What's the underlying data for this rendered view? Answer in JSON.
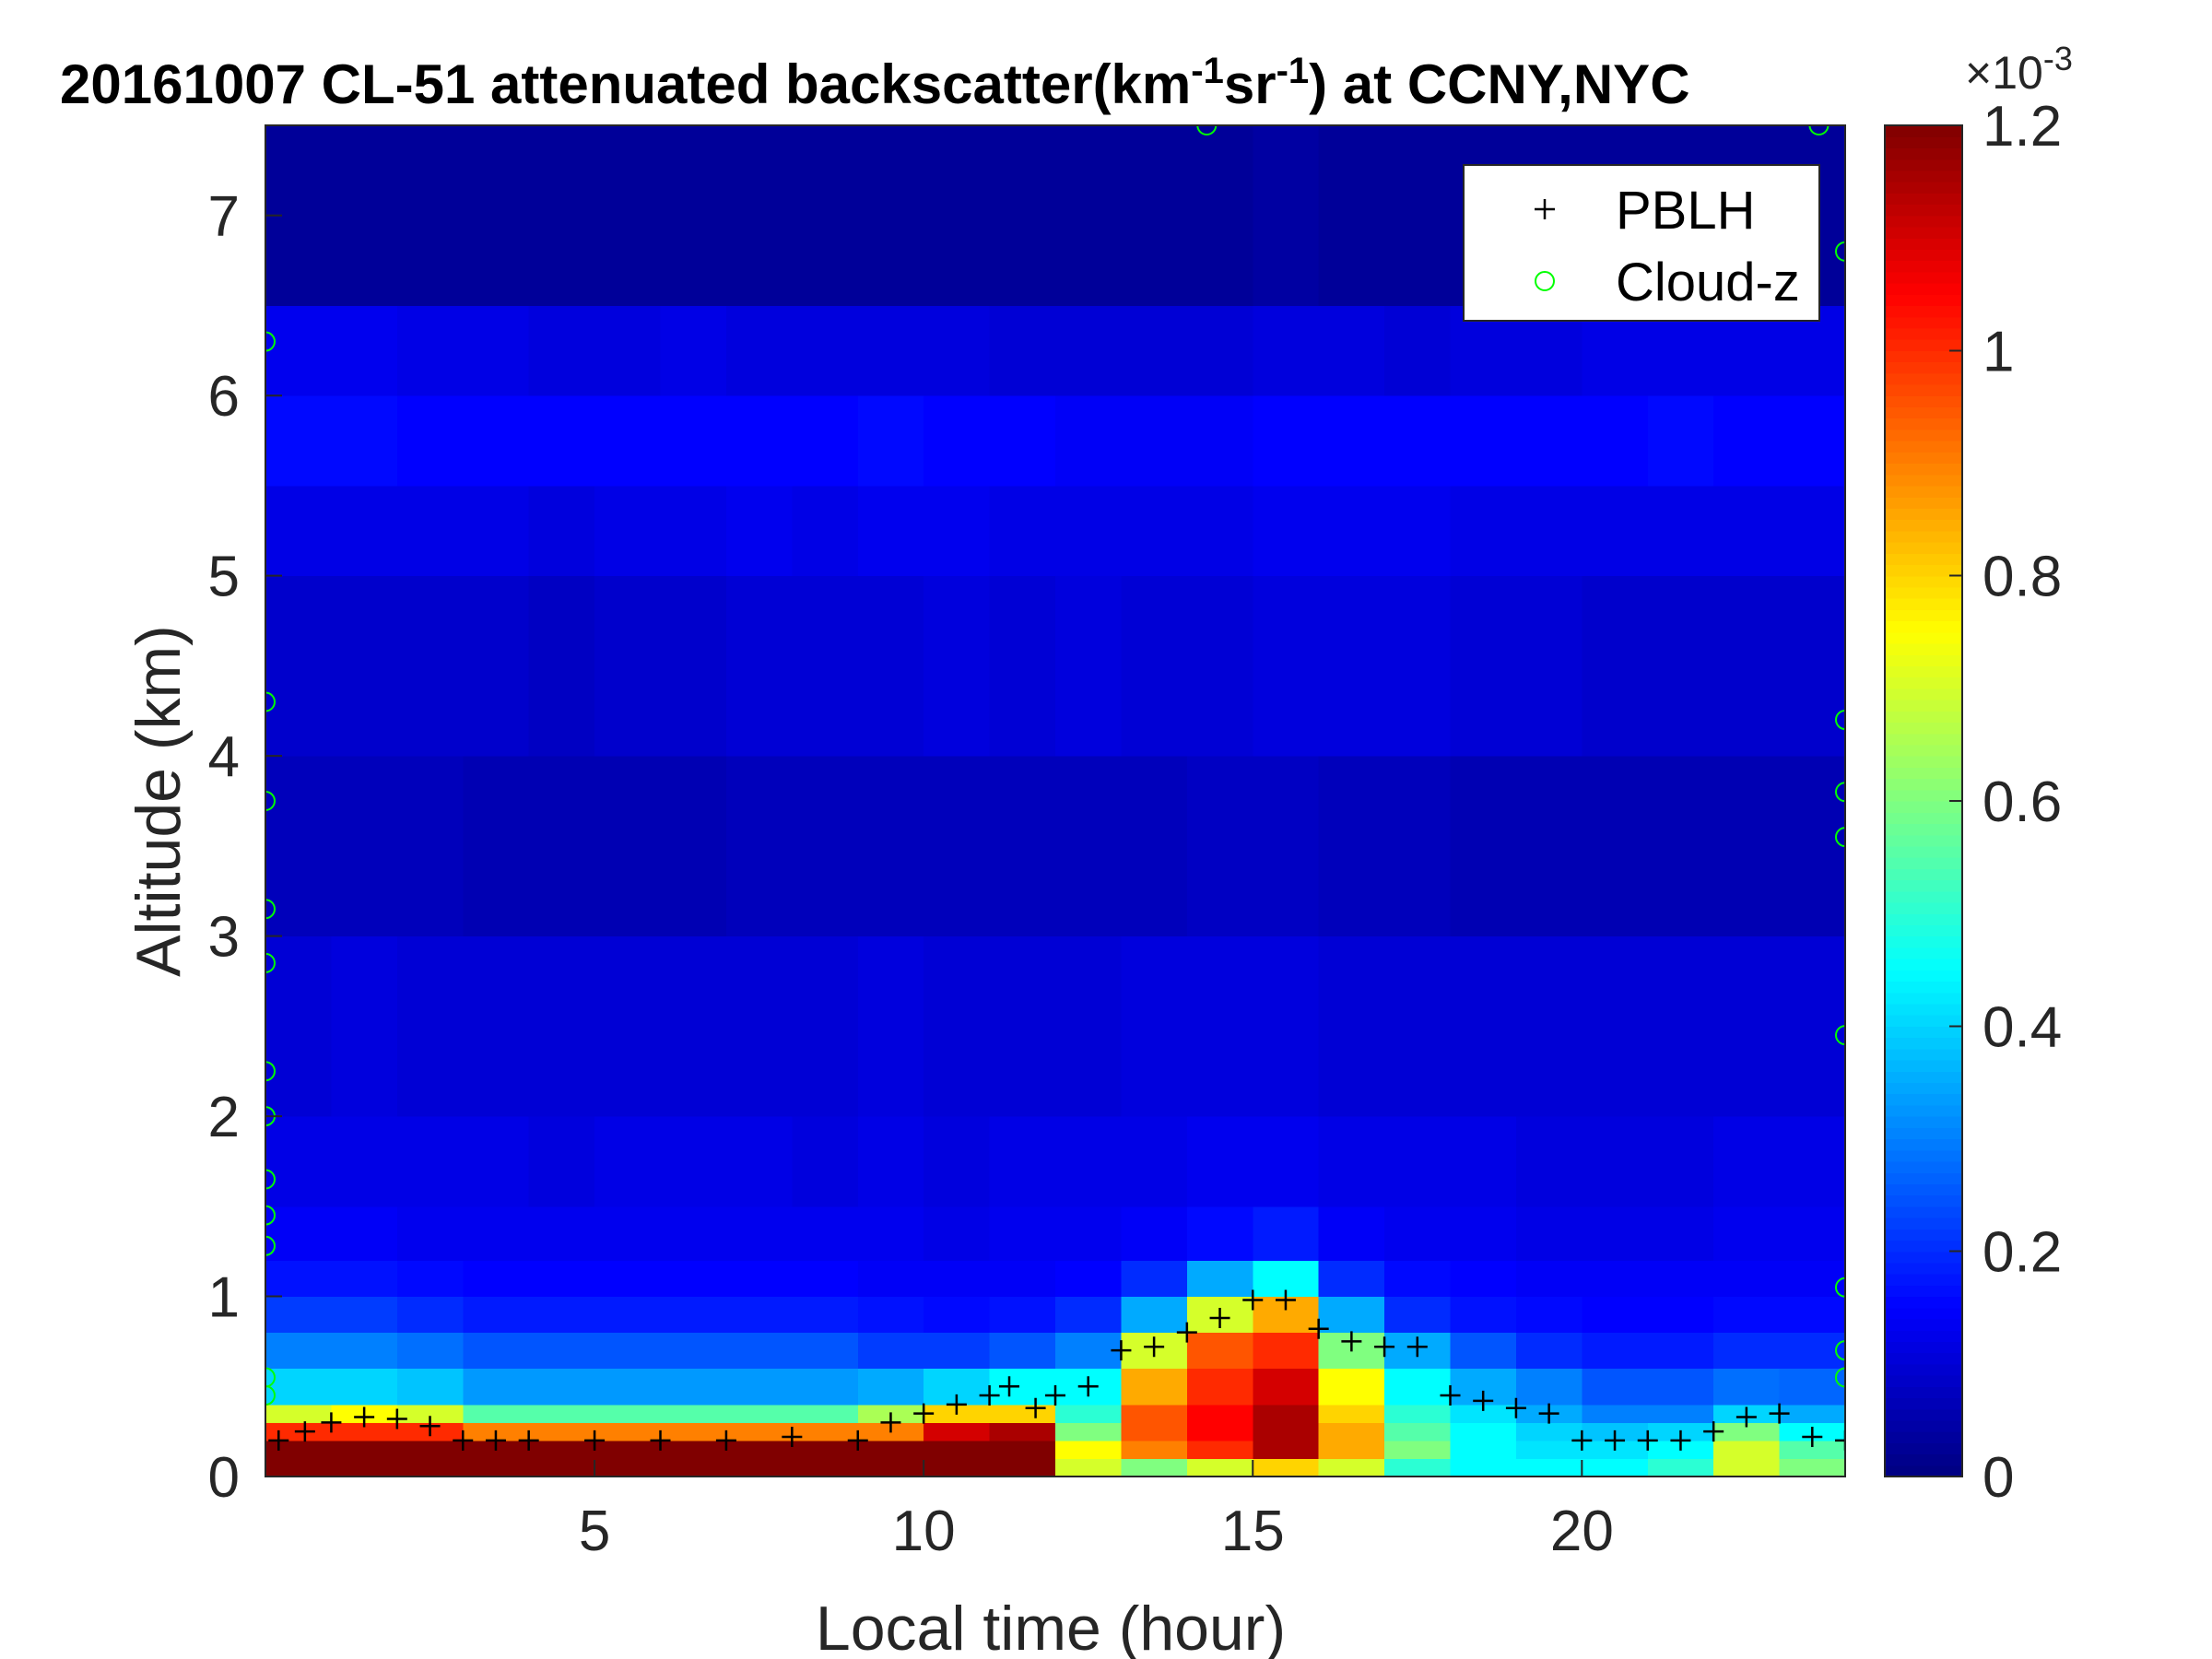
{
  "chart_data": {
    "type": "heatmap",
    "title": [
      "20161007  CL-51 attenuated backscatter(km",
      "-1",
      "sr",
      "-1",
      ") at CCNY,NYC"
    ],
    "xlabel": "Local time (hour)",
    "ylabel": "Altitude (km)",
    "xlim": [
      0,
      24
    ],
    "ylim": [
      0,
      7.5
    ],
    "xticks": [
      5,
      10,
      15,
      20
    ],
    "yticks": [
      0,
      1,
      2,
      3,
      4,
      5,
      6,
      7
    ],
    "x_edges": [
      0,
      1,
      2,
      3,
      4,
      5,
      6,
      7,
      8,
      9,
      10,
      11,
      12,
      13,
      14,
      15,
      16,
      17,
      18,
      19,
      20,
      21,
      22,
      23,
      24
    ],
    "y_edges": [
      0,
      0.1,
      0.2,
      0.3,
      0.4,
      0.6,
      0.8,
      1.0,
      1.2,
      1.5,
      2,
      3,
      4,
      5,
      5.5,
      6,
      6.5,
      7.5
    ],
    "values": [
      [
        1.2,
        1.2,
        1.2,
        1.2,
        1.2,
        1.2,
        1.2,
        1.2,
        1.2,
        1.2,
        1.2,
        1.2,
        0.7,
        0.6,
        0.7,
        0.8,
        0.7,
        0.5,
        0.45,
        0.45,
        0.45,
        0.5,
        0.7,
        0.6
      ],
      [
        1.2,
        1.2,
        1.2,
        1.2,
        1.2,
        1.2,
        1.2,
        1.2,
        1.2,
        1.2,
        1.2,
        1.2,
        0.75,
        0.9,
        1.0,
        1.15,
        0.85,
        0.6,
        0.45,
        0.42,
        0.42,
        0.45,
        0.7,
        0.55
      ],
      [
        1.0,
        1.0,
        1.0,
        0.9,
        0.9,
        0.9,
        0.9,
        0.9,
        0.9,
        0.9,
        1.1,
        1.15,
        0.6,
        0.95,
        1.05,
        1.15,
        0.85,
        0.55,
        0.45,
        0.4,
        0.38,
        0.4,
        0.6,
        0.45
      ],
      [
        0.7,
        0.75,
        0.7,
        0.55,
        0.55,
        0.55,
        0.55,
        0.55,
        0.55,
        0.65,
        0.8,
        0.8,
        0.5,
        0.95,
        1.05,
        1.15,
        0.8,
        0.5,
        0.42,
        0.35,
        0.3,
        0.3,
        0.4,
        0.35
      ],
      [
        0.4,
        0.4,
        0.38,
        0.33,
        0.33,
        0.33,
        0.33,
        0.33,
        0.33,
        0.35,
        0.4,
        0.45,
        0.45,
        0.85,
        1.0,
        1.1,
        0.75,
        0.45,
        0.35,
        0.3,
        0.25,
        0.25,
        0.28,
        0.27
      ],
      [
        0.3,
        0.3,
        0.28,
        0.25,
        0.25,
        0.25,
        0.25,
        0.25,
        0.25,
        0.22,
        0.22,
        0.25,
        0.3,
        0.7,
        0.95,
        1.0,
        0.6,
        0.35,
        0.25,
        0.2,
        0.18,
        0.18,
        0.2,
        0.2
      ],
      [
        0.22,
        0.22,
        0.2,
        0.18,
        0.18,
        0.18,
        0.18,
        0.18,
        0.18,
        0.17,
        0.16,
        0.17,
        0.2,
        0.35,
        0.7,
        0.85,
        0.35,
        0.2,
        0.17,
        0.16,
        0.15,
        0.15,
        0.16,
        0.16
      ],
      [
        0.17,
        0.17,
        0.16,
        0.15,
        0.15,
        0.15,
        0.15,
        0.15,
        0.15,
        0.14,
        0.14,
        0.14,
        0.15,
        0.2,
        0.35,
        0.45,
        0.2,
        0.16,
        0.15,
        0.14,
        0.14,
        0.14,
        0.14,
        0.14
      ],
      [
        0.14,
        0.14,
        0.13,
        0.13,
        0.13,
        0.13,
        0.13,
        0.13,
        0.13,
        0.13,
        0.12,
        0.13,
        0.13,
        0.14,
        0.16,
        0.18,
        0.14,
        0.13,
        0.13,
        0.12,
        0.12,
        0.12,
        0.13,
        0.13
      ],
      [
        0.12,
        0.12,
        0.12,
        0.12,
        0.11,
        0.12,
        0.12,
        0.12,
        0.11,
        0.12,
        0.11,
        0.12,
        0.12,
        0.12,
        0.13,
        0.13,
        0.12,
        0.12,
        0.12,
        0.11,
        0.11,
        0.11,
        0.12,
        0.12
      ],
      [
        0.1,
        0.11,
        0.1,
        0.1,
        0.1,
        0.1,
        0.1,
        0.1,
        0.1,
        0.11,
        0.1,
        0.1,
        0.1,
        0.11,
        0.11,
        0.11,
        0.1,
        0.1,
        0.1,
        0.1,
        0.1,
        0.1,
        0.1,
        0.1
      ],
      [
        0.07,
        0.07,
        0.07,
        0.06,
        0.06,
        0.06,
        0.06,
        0.07,
        0.07,
        0.07,
        0.07,
        0.07,
        0.07,
        0.07,
        0.08,
        0.08,
        0.07,
        0.07,
        0.06,
        0.06,
        0.06,
        0.06,
        0.06,
        0.06
      ],
      [
        0.09,
        0.09,
        0.09,
        0.09,
        0.08,
        0.09,
        0.09,
        0.1,
        0.1,
        0.1,
        0.11,
        0.1,
        0.11,
        0.1,
        0.1,
        0.11,
        0.11,
        0.11,
        0.1,
        0.1,
        0.09,
        0.09,
        0.09,
        0.09
      ],
      [
        0.12,
        0.12,
        0.12,
        0.12,
        0.11,
        0.12,
        0.12,
        0.13,
        0.12,
        0.13,
        0.13,
        0.12,
        0.12,
        0.12,
        0.12,
        0.13,
        0.13,
        0.13,
        0.12,
        0.12,
        0.12,
        0.12,
        0.12,
        0.12
      ],
      [
        0.16,
        0.16,
        0.15,
        0.15,
        0.15,
        0.15,
        0.15,
        0.15,
        0.15,
        0.16,
        0.15,
        0.15,
        0.14,
        0.14,
        0.14,
        0.15,
        0.15,
        0.15,
        0.15,
        0.15,
        0.15,
        0.16,
        0.15,
        0.15
      ],
      [
        0.13,
        0.13,
        0.12,
        0.12,
        0.11,
        0.11,
        0.12,
        0.11,
        0.11,
        0.11,
        0.11,
        0.1,
        0.1,
        0.1,
        0.1,
        0.11,
        0.11,
        0.1,
        0.11,
        0.11,
        0.12,
        0.12,
        0.12,
        0.12
      ],
      [
        0.03,
        0.03,
        0.03,
        0.03,
        0.03,
        0.03,
        0.03,
        0.03,
        0.03,
        0.03,
        0.03,
        0.03,
        0.03,
        0.03,
        0.03,
        0.04,
        0.03,
        0.03,
        0.03,
        0.03,
        0.03,
        0.03,
        0.03,
        0.03
      ]
    ],
    "colormap": "jet",
    "clim": [
      0,
      1.2
    ],
    "cticks": [
      0,
      0.2,
      0.4,
      0.6,
      0.8,
      1,
      1.2
    ],
    "colorbar_exponent": [
      "×10",
      "-3"
    ],
    "legend": "northeast",
    "overlays": [
      {
        "name": "PBLH",
        "marker": "+",
        "color": "#000000",
        "x": [
          0.2,
          0.6,
          1,
          1.5,
          2,
          2.5,
          3,
          3.5,
          4,
          5,
          6,
          7,
          8,
          9,
          9.5,
          10,
          10.5,
          11,
          11.3,
          11.7,
          12,
          12.5,
          13,
          13.5,
          14,
          14.5,
          15,
          15.5,
          16,
          16.5,
          17,
          17.5,
          18,
          18.5,
          19,
          19.5,
          20,
          20.5,
          21,
          21.5,
          22,
          22.5,
          23,
          23.5,
          24
        ],
        "y": [
          0.2,
          0.25,
          0.3,
          0.33,
          0.32,
          0.28,
          0.2,
          0.2,
          0.2,
          0.2,
          0.2,
          0.2,
          0.22,
          0.2,
          0.3,
          0.35,
          0.4,
          0.45,
          0.5,
          0.38,
          0.45,
          0.5,
          0.7,
          0.72,
          0.8,
          0.88,
          0.98,
          0.98,
          0.82,
          0.75,
          0.72,
          0.72,
          0.45,
          0.42,
          0.38,
          0.35,
          0.2,
          0.2,
          0.2,
          0.2,
          0.25,
          0.33,
          0.35,
          0.22,
          0.2
        ]
      },
      {
        "name": "Cloud-z",
        "marker": "o",
        "color": "#00ff00",
        "x": [
          0,
          0,
          0,
          0,
          0,
          0,
          0,
          0,
          0,
          0,
          0,
          0,
          24,
          24,
          24,
          24,
          24,
          24,
          24,
          24,
          14.3,
          23.6
        ],
        "y": [
          6.3,
          4.3,
          3.75,
          3.15,
          2.85,
          2.25,
          2.0,
          1.65,
          1.45,
          1.28,
          0.55,
          0.45,
          6.8,
          4.2,
          3.8,
          3.55,
          2.45,
          1.05,
          0.7,
          0.55,
          7.5,
          7.5
        ]
      }
    ]
  }
}
